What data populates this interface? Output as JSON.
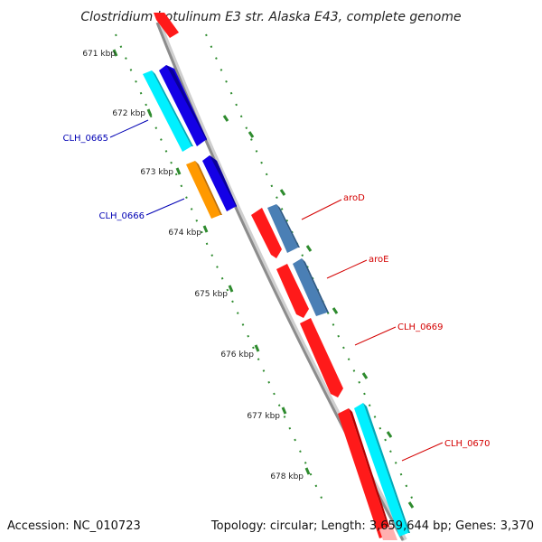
{
  "title": "Clostridium botulinum E3 str. Alaska E43, complete genome",
  "footer": {
    "accession": "Accession: NC_010723",
    "summary": "Topology: circular; Length: 3,659,644 bp; Genes: 3,370"
  },
  "colors": {
    "backbone": "#8c8c8c",
    "tick_dots": "#2e8b2e",
    "left_labels": "#0000b4",
    "right_labels": "#d40000"
  },
  "scale_labels": [
    "671 kbp",
    "672 kbp",
    "673 kbp",
    "674 kbp",
    "675 kbp",
    "676 kbp",
    "677 kbp",
    "678 kbp"
  ],
  "gene_labels": {
    "left": [
      "CLH_0665",
      "CLH_0666"
    ],
    "right": [
      "aroD",
      "aroE",
      "CLH_0669",
      "CLH_0670"
    ]
  },
  "features": [
    {
      "kind": "gene",
      "color": "#ff1a1a"
    },
    {
      "kind": "gene",
      "color": "#00f0ff"
    },
    {
      "kind": "gene",
      "color": "#1400e6"
    },
    {
      "kind": "gene",
      "color": "#ff9900"
    },
    {
      "kind": "gene",
      "color": "#1400e6"
    },
    {
      "kind": "gene",
      "color": "#ff1a1a"
    },
    {
      "kind": "gene",
      "color": "#4a7fb5"
    },
    {
      "kind": "gene",
      "color": "#ff1a1a"
    },
    {
      "kind": "gene",
      "color": "#4a7fb5"
    },
    {
      "kind": "gene",
      "color": "#ff1a1a"
    },
    {
      "kind": "gene",
      "color": "#ff1a1a"
    },
    {
      "kind": "gene",
      "color": "#00f0ff"
    }
  ]
}
